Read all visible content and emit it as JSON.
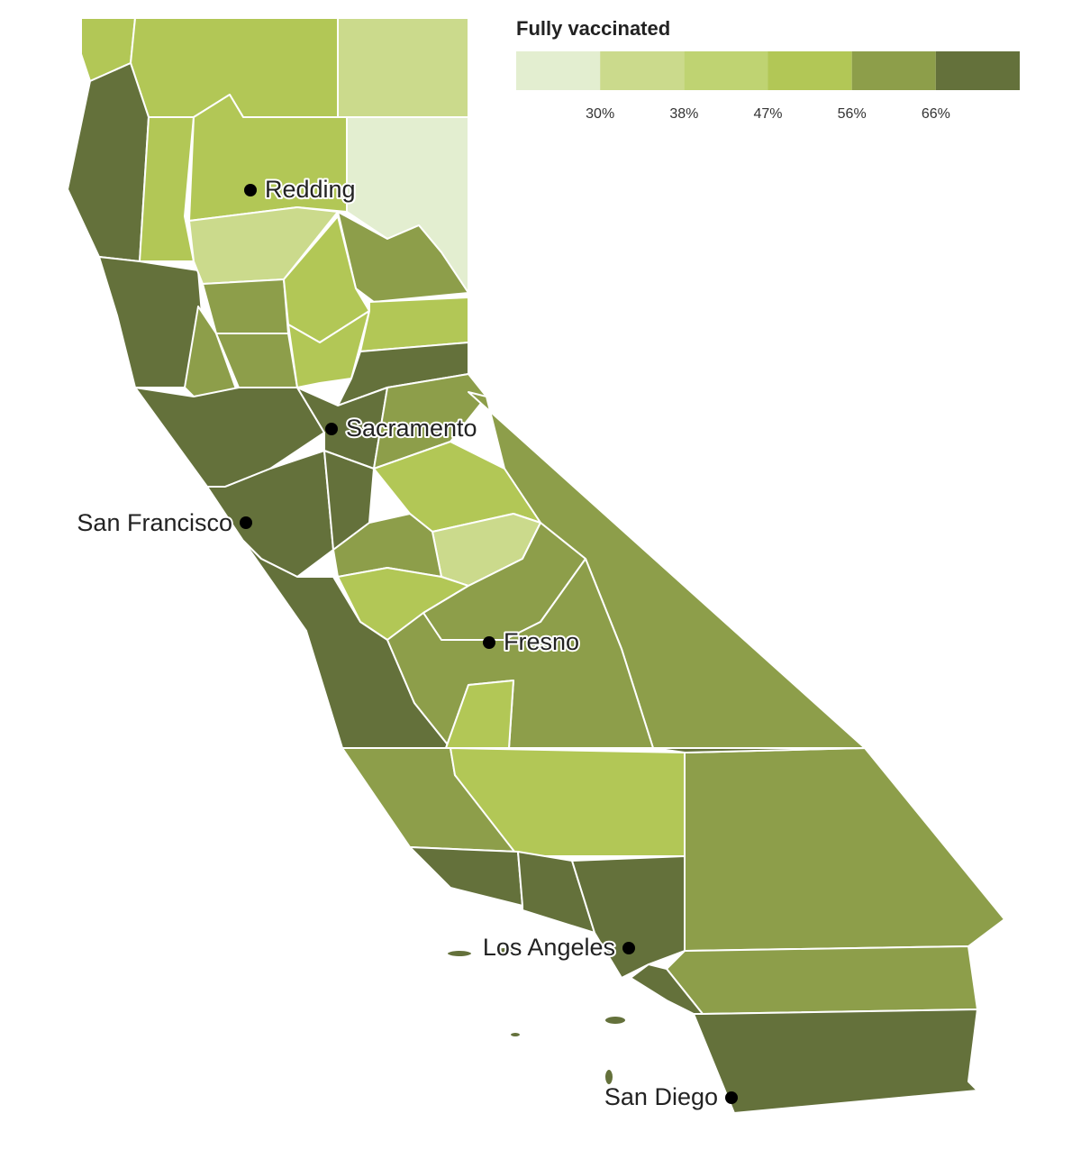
{
  "legend": {
    "title": "Fully vaccinated",
    "colors": [
      "#e3eed0",
      "#cbda8c",
      "#bfd372",
      "#b2c756",
      "#8d9e4a",
      "#64713b"
    ],
    "breaks": [
      {
        "value": 30,
        "label": "30%"
      },
      {
        "value": 38,
        "label": "38%"
      },
      {
        "value": 47,
        "label": "47%"
      },
      {
        "value": 56,
        "label": "56%"
      },
      {
        "value": 66,
        "label": "66%"
      }
    ]
  },
  "cities": [
    {
      "label": "Redding"
    },
    {
      "label": "Sacramento"
    },
    {
      "label": "San Francisco"
    },
    {
      "label": "Fresno"
    },
    {
      "label": "Los Angeles"
    },
    {
      "label": "San Diego"
    }
  ]
}
